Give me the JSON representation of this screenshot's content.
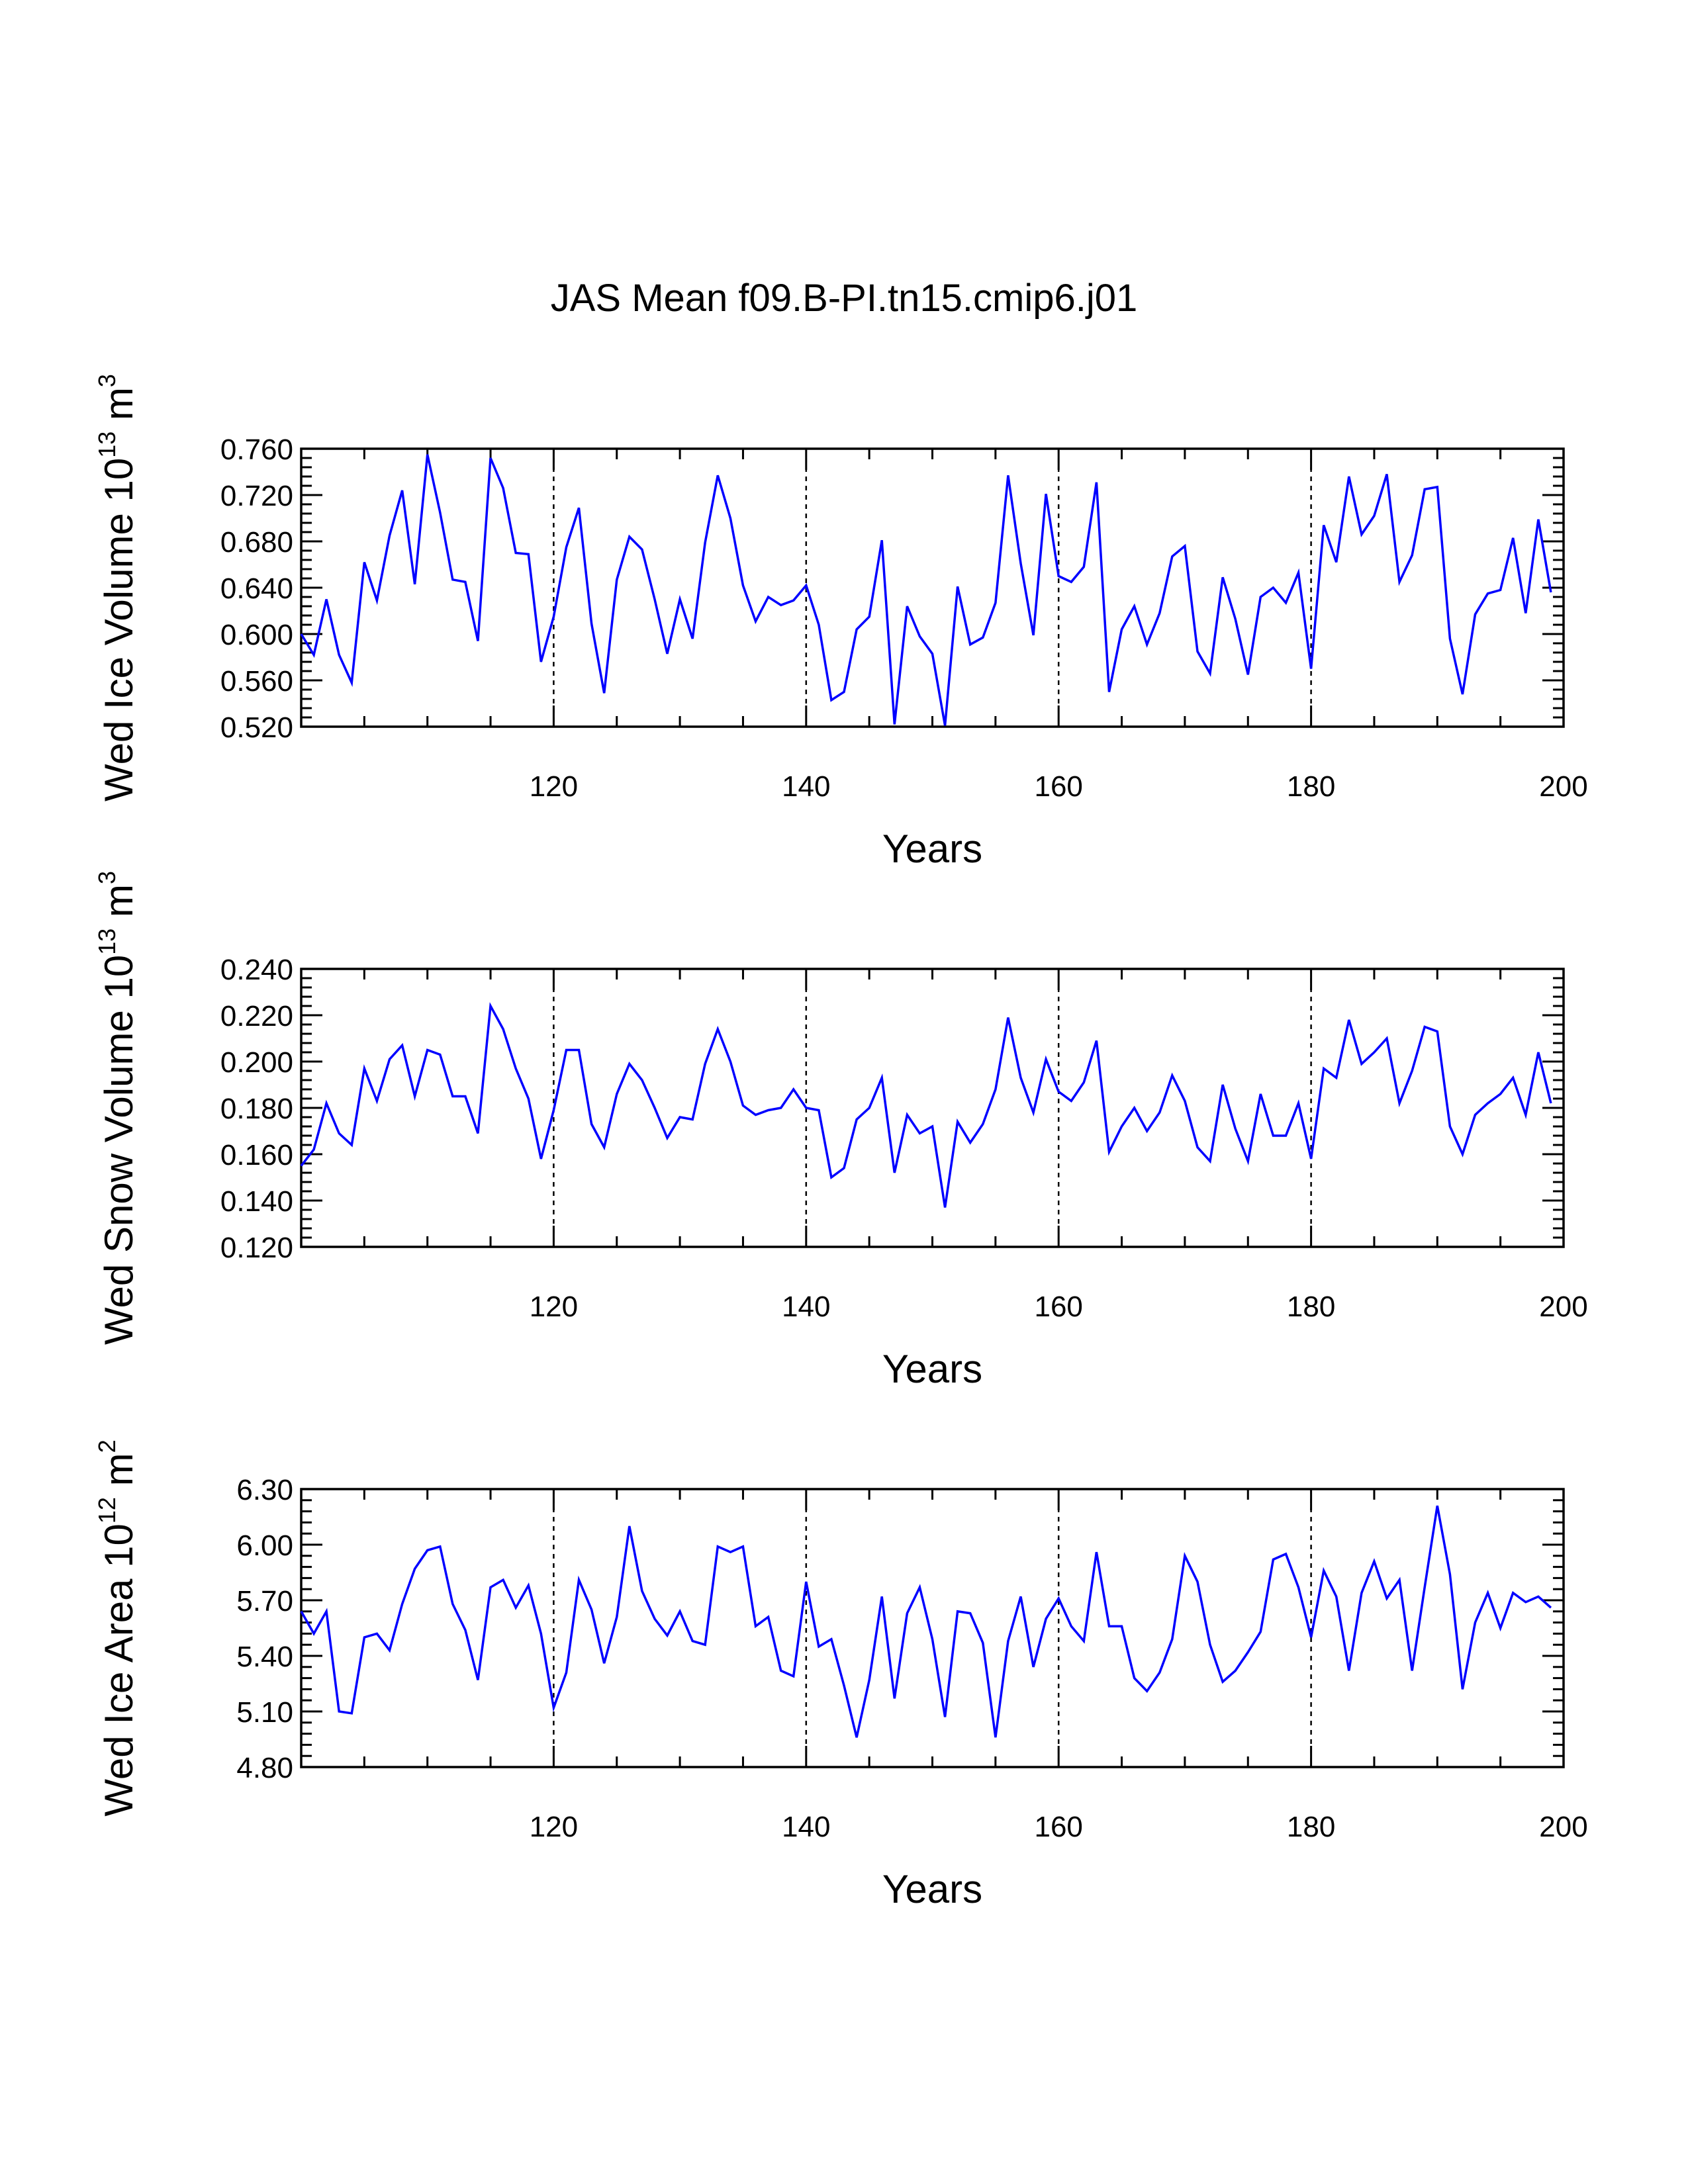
{
  "figure": {
    "title": "JAS Mean f09.B-PI.tn15.cmip6.j01",
    "line_color": "#0000ff"
  },
  "chart_data": [
    {
      "type": "line",
      "panel_id": "ice-volume",
      "ylabel": "Wed Ice Volume 10",
      "ylabel_exp": "13",
      "ylabel_unit": " m",
      "ylabel_unit_exp": "3",
      "xlabel": "Years",
      "xlim": [
        100,
        200
      ],
      "xticks": [
        120,
        140,
        160,
        180,
        200
      ],
      "xtick_labels": [
        "120",
        "140",
        "160",
        "180",
        "200"
      ],
      "ylim": [
        0.52,
        0.76
      ],
      "yticks": [
        0.52,
        0.56,
        0.6,
        0.64,
        0.68,
        0.72,
        0.76
      ],
      "ytick_labels": [
        "0.520",
        "0.560",
        "0.600",
        "0.640",
        "0.680",
        "0.720",
        "0.760"
      ],
      "grid_x": [
        120,
        140,
        160,
        180
      ],
      "x_start": 100,
      "values": [
        0.6,
        0.582,
        0.63,
        0.582,
        0.558,
        0.662,
        0.629,
        0.685,
        0.724,
        0.643,
        0.755,
        0.705,
        0.647,
        0.645,
        0.594,
        0.752,
        0.726,
        0.67,
        0.669,
        0.576,
        0.615,
        0.675,
        0.709,
        0.609,
        0.549,
        0.647,
        0.684,
        0.673,
        0.63,
        0.583,
        0.63,
        0.596,
        0.679,
        0.737,
        0.7,
        0.642,
        0.611,
        0.632,
        0.625,
        0.629,
        0.642,
        0.608,
        0.543,
        0.55,
        0.604,
        0.615,
        0.681,
        0.522,
        0.624,
        0.598,
        0.583,
        0.521,
        0.641,
        0.591,
        0.597,
        0.627,
        0.737,
        0.661,
        0.599,
        0.721,
        0.65,
        0.645,
        0.658,
        0.731,
        0.55,
        0.604,
        0.624,
        0.591,
        0.618,
        0.667,
        0.676,
        0.585,
        0.566,
        0.649,
        0.613,
        0.565,
        0.632,
        0.64,
        0.627,
        0.653,
        0.57,
        0.694,
        0.662,
        0.736,
        0.686,
        0.702,
        0.738,
        0.645,
        0.668,
        0.725,
        0.727,
        0.596,
        0.548,
        0.617,
        0.635,
        0.638,
        0.683,
        0.618,
        0.699,
        0.636
      ]
    },
    {
      "type": "line",
      "panel_id": "snow-volume",
      "ylabel": "Wed Snow Volume 10",
      "ylabel_exp": "13",
      "ylabel_unit": " m",
      "ylabel_unit_exp": "3",
      "xlabel": "Years",
      "xlim": [
        100,
        200
      ],
      "xticks": [
        120,
        140,
        160,
        180,
        200
      ],
      "xtick_labels": [
        "120",
        "140",
        "160",
        "180",
        "200"
      ],
      "ylim": [
        0.12,
        0.24
      ],
      "yticks": [
        0.12,
        0.14,
        0.16,
        0.18,
        0.2,
        0.22,
        0.24
      ],
      "ytick_labels": [
        "0.120",
        "0.140",
        "0.160",
        "0.180",
        "0.200",
        "0.220",
        "0.240"
      ],
      "grid_x": [
        120,
        140,
        160,
        180
      ],
      "x_start": 100,
      "values": [
        0.155,
        0.162,
        0.182,
        0.169,
        0.164,
        0.197,
        0.183,
        0.201,
        0.207,
        0.185,
        0.205,
        0.203,
        0.185,
        0.185,
        0.169,
        0.224,
        0.214,
        0.197,
        0.184,
        0.158,
        0.179,
        0.205,
        0.205,
        0.173,
        0.163,
        0.186,
        0.199,
        0.192,
        0.18,
        0.167,
        0.176,
        0.175,
        0.199,
        0.214,
        0.2,
        0.181,
        0.177,
        0.179,
        0.18,
        0.188,
        0.18,
        0.179,
        0.15,
        0.154,
        0.175,
        0.18,
        0.193,
        0.152,
        0.177,
        0.169,
        0.172,
        0.137,
        0.174,
        0.165,
        0.173,
        0.188,
        0.219,
        0.193,
        0.178,
        0.201,
        0.187,
        0.183,
        0.191,
        0.209,
        0.161,
        0.172,
        0.18,
        0.17,
        0.178,
        0.194,
        0.183,
        0.163,
        0.157,
        0.19,
        0.171,
        0.157,
        0.186,
        0.168,
        0.168,
        0.182,
        0.158,
        0.197,
        0.193,
        0.218,
        0.199,
        0.204,
        0.21,
        0.182,
        0.196,
        0.215,
        0.213,
        0.172,
        0.16,
        0.177,
        0.182,
        0.186,
        0.193,
        0.177,
        0.204,
        0.182
      ]
    },
    {
      "type": "line",
      "panel_id": "ice-area",
      "ylabel": "Wed Ice Area 10",
      "ylabel_exp": "12",
      "ylabel_unit": " m",
      "ylabel_unit_exp": "2",
      "xlabel": "Years",
      "xlim": [
        100,
        200
      ],
      "xticks": [
        120,
        140,
        160,
        180,
        200
      ],
      "xtick_labels": [
        "120",
        "140",
        "160",
        "180",
        "200"
      ],
      "ylim": [
        4.8,
        6.3
      ],
      "yticks": [
        4.8,
        5.1,
        5.4,
        5.7,
        6.0,
        6.3
      ],
      "ytick_labels": [
        "4.80",
        "5.10",
        "5.40",
        "5.70",
        "6.00",
        "6.30"
      ],
      "grid_x": [
        120,
        140,
        160,
        180
      ],
      "x_start": 100,
      "values": [
        5.64,
        5.52,
        5.64,
        5.1,
        5.09,
        5.5,
        5.52,
        5.43,
        5.68,
        5.87,
        5.97,
        5.99,
        5.68,
        5.54,
        5.27,
        5.77,
        5.81,
        5.66,
        5.78,
        5.52,
        5.12,
        5.31,
        5.81,
        5.65,
        5.36,
        5.61,
        6.1,
        5.75,
        5.6,
        5.51,
        5.64,
        5.48,
        5.46,
        5.99,
        5.96,
        5.99,
        5.56,
        5.61,
        5.32,
        5.29,
        5.8,
        5.45,
        5.49,
        5.24,
        4.96,
        5.27,
        5.72,
        5.17,
        5.63,
        5.77,
        5.49,
        5.07,
        5.64,
        5.63,
        5.47,
        4.96,
        5.48,
        5.72,
        5.34,
        5.6,
        5.71,
        5.56,
        5.48,
        5.96,
        5.56,
        5.56,
        5.28,
        5.21,
        5.31,
        5.49,
        5.94,
        5.8,
        5.46,
        5.26,
        5.32,
        5.42,
        5.53,
        5.92,
        5.95,
        5.77,
        5.5,
        5.86,
        5.72,
        5.32,
        5.74,
        5.91,
        5.71,
        5.81,
        5.32,
        5.77,
        6.21,
        5.84,
        5.22,
        5.58,
        5.74,
        5.55,
        5.74,
        5.69,
        5.72,
        5.66
      ]
    }
  ]
}
